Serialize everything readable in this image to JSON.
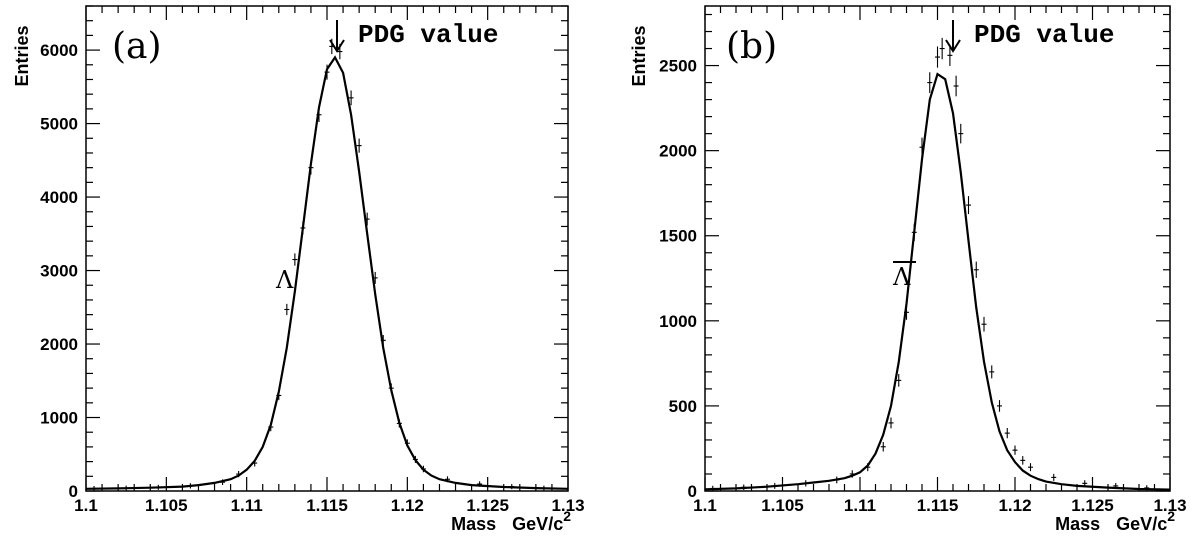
{
  "chart_data": [
    {
      "type": "line",
      "panel_label": "(a)",
      "annotation": "PDG value",
      "particle_label": "Λ",
      "particle_overline": false,
      "xlabel": "Mass",
      "xunit": "GeV/c",
      "xunit_sup": "2",
      "ylabel": "Entries",
      "xlim": [
        1.1,
        1.13
      ],
      "ylim": [
        0,
        6600
      ],
      "xticks": [
        1.1,
        1.105,
        1.11,
        1.115,
        1.12,
        1.125,
        1.13
      ],
      "xtick_labels": [
        "1.1",
        "1.105",
        "1.11",
        "1.115",
        "1.12",
        "1.125",
        "1.13"
      ],
      "yticks": [
        0,
        1000,
        2000,
        3000,
        4000,
        5000,
        6000
      ],
      "ytick_labels": [
        "0",
        "1000",
        "2000",
        "3000",
        "4000",
        "5000",
        "6000"
      ],
      "pdg_mass": 1.1157,
      "series": [
        {
          "kind": "fit",
          "x": [
            1.1,
            1.102,
            1.104,
            1.106,
            1.107,
            1.108,
            1.109,
            1.1095,
            1.11,
            1.1105,
            1.111,
            1.1115,
            1.112,
            1.1125,
            1.113,
            1.1135,
            1.114,
            1.1145,
            1.115,
            1.1155,
            1.116,
            1.1165,
            1.117,
            1.1175,
            1.118,
            1.1185,
            1.119,
            1.1195,
            1.12,
            1.1205,
            1.121,
            1.1215,
            1.122,
            1.123,
            1.124,
            1.126,
            1.128,
            1.13
          ],
          "y": [
            30,
            35,
            45,
            60,
            80,
            110,
            160,
            210,
            290,
            410,
            600,
            900,
            1350,
            1950,
            2720,
            3580,
            4450,
            5220,
            5740,
            5900,
            5690,
            5120,
            4350,
            3500,
            2680,
            1950,
            1370,
            930,
            620,
            420,
            290,
            210,
            160,
            110,
            80,
            55,
            40,
            30
          ]
        },
        {
          "kind": "data",
          "x": [
            1.1005,
            1.1025,
            1.1045,
            1.1065,
            1.1085,
            1.1095,
            1.1105,
            1.1115,
            1.112,
            1.1125,
            1.113,
            1.1135,
            1.114,
            1.1145,
            1.115,
            1.1153,
            1.1158,
            1.1165,
            1.117,
            1.1175,
            1.118,
            1.1185,
            1.119,
            1.1195,
            1.12,
            1.1205,
            1.121,
            1.1225,
            1.1245,
            1.1265,
            1.1285
          ],
          "y": [
            35,
            40,
            50,
            70,
            120,
            230,
            380,
            870,
            1300,
            2470,
            3150,
            3580,
            4400,
            5120,
            5700,
            6050,
            5980,
            5350,
            4700,
            3700,
            2900,
            2050,
            1400,
            920,
            650,
            430,
            300,
            160,
            95,
            60,
            40
          ]
        }
      ]
    },
    {
      "type": "line",
      "panel_label": "(b)",
      "annotation": "PDG value",
      "particle_label": "Λ",
      "particle_overline": true,
      "xlabel": "Mass",
      "xunit": "GeV/c",
      "xunit_sup": "2",
      "ylabel": "Entries",
      "xlim": [
        1.1,
        1.13
      ],
      "ylim": [
        0,
        2850
      ],
      "xticks": [
        1.1,
        1.105,
        1.11,
        1.115,
        1.12,
        1.125,
        1.13
      ],
      "xtick_labels": [
        "1.1",
        "1.105",
        "1.11",
        "1.115",
        "1.12",
        "1.125",
        "1.13"
      ],
      "yticks": [
        0,
        500,
        1000,
        1500,
        2000,
        2500
      ],
      "ytick_labels": [
        "0",
        "500",
        "1000",
        "1500",
        "2000",
        "2500"
      ],
      "pdg_mass": 1.1157,
      "series": [
        {
          "kind": "fit",
          "x": [
            1.1,
            1.102,
            1.104,
            1.106,
            1.107,
            1.108,
            1.109,
            1.1095,
            1.11,
            1.1105,
            1.111,
            1.1115,
            1.112,
            1.1125,
            1.113,
            1.1135,
            1.114,
            1.1145,
            1.115,
            1.1155,
            1.116,
            1.1165,
            1.117,
            1.1175,
            1.118,
            1.1185,
            1.119,
            1.1195,
            1.12,
            1.1205,
            1.121,
            1.1215,
            1.122,
            1.123,
            1.124,
            1.126,
            1.128,
            1.13
          ],
          "y": [
            10,
            15,
            25,
            40,
            50,
            60,
            75,
            90,
            110,
            150,
            220,
            330,
            500,
            760,
            1100,
            1520,
            1950,
            2300,
            2450,
            2420,
            2220,
            1870,
            1470,
            1080,
            760,
            520,
            350,
            240,
            170,
            120,
            90,
            70,
            55,
            40,
            30,
            20,
            12,
            8
          ]
        },
        {
          "kind": "data",
          "x": [
            1.1005,
            1.1025,
            1.1045,
            1.1065,
            1.1085,
            1.1095,
            1.1105,
            1.1115,
            1.112,
            1.1125,
            1.113,
            1.1135,
            1.114,
            1.1145,
            1.115,
            1.1153,
            1.1158,
            1.1162,
            1.1165,
            1.117,
            1.1175,
            1.118,
            1.1185,
            1.119,
            1.1195,
            1.12,
            1.1205,
            1.121,
            1.1225,
            1.1245,
            1.1265,
            1.1285
          ],
          "y": [
            15,
            22,
            30,
            45,
            65,
            100,
            140,
            260,
            400,
            650,
            1050,
            1520,
            2020,
            2400,
            2550,
            2600,
            2560,
            2380,
            2100,
            1680,
            1300,
            980,
            700,
            500,
            340,
            240,
            180,
            140,
            80,
            45,
            30,
            18
          ]
        }
      ]
    }
  ]
}
